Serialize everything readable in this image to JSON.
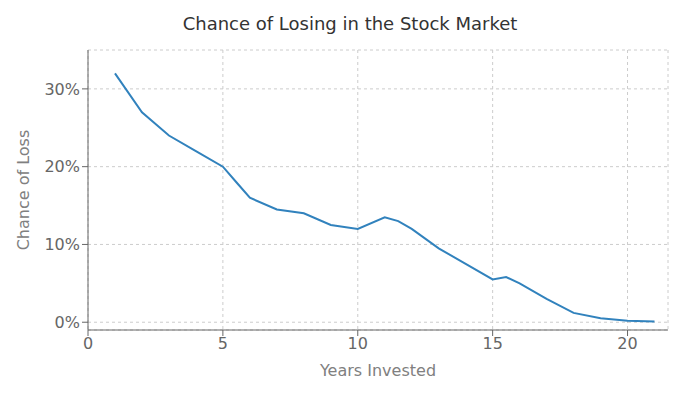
{
  "chart_data": {
    "type": "line",
    "title": "Chance of Losing in the Stock Market",
    "xlabel": "Years Invested",
    "ylabel": "Chance of Loss",
    "x": [
      1,
      2,
      3,
      4,
      5,
      5.5,
      6,
      7,
      8,
      9,
      10,
      11,
      11.5,
      12,
      13,
      14,
      15,
      15.5,
      16,
      17,
      18,
      19,
      20,
      21
    ],
    "values": [
      32,
      27,
      24,
      22,
      20,
      18,
      16,
      14.5,
      14,
      12.5,
      12,
      13.5,
      13,
      12,
      9.5,
      7.5,
      5.5,
      5.8,
      5,
      3,
      1.2,
      0.5,
      0.2,
      0.1
    ],
    "xlim": [
      0,
      21.5
    ],
    "ylim": [
      -1,
      35
    ],
    "xticks": [
      0,
      5,
      10,
      15,
      20
    ],
    "yticks": [
      {
        "value": 0,
        "label": "0%"
      },
      {
        "value": 10,
        "label": "10%"
      },
      {
        "value": 20,
        "label": "20%"
      },
      {
        "value": 30,
        "label": "30%"
      }
    ],
    "grid": true,
    "marker": "none"
  }
}
